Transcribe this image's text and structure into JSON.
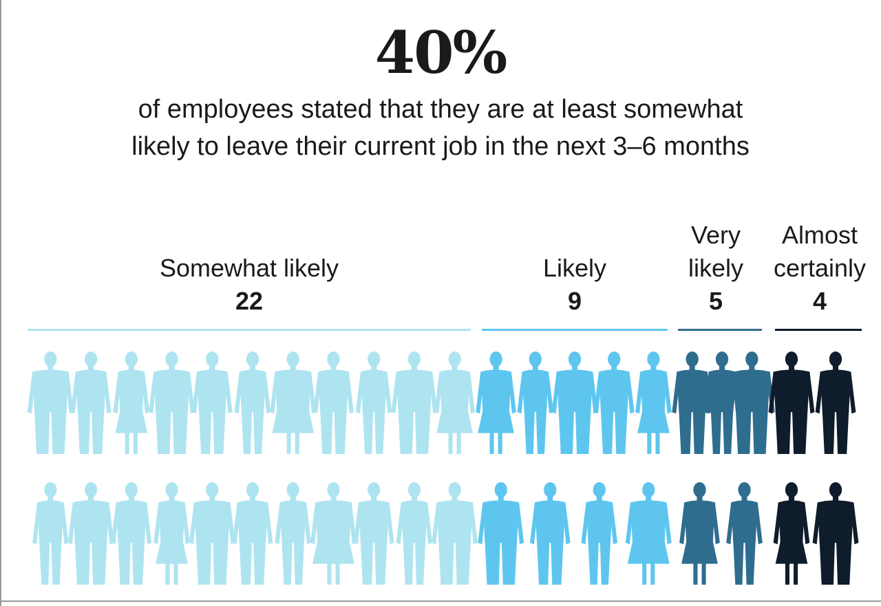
{
  "headline": "40%",
  "subtitle_line1": "of employees stated that they are at least somewhat",
  "subtitle_line2": "likely to leave their current job in the next 3–6 months",
  "chart_data": {
    "type": "pictograph",
    "total_icons": 40,
    "categories": [
      "Somewhat likely",
      "Likely",
      "Very likely",
      "Almost certainly"
    ],
    "values": [
      22,
      9,
      5,
      4
    ],
    "colors": [
      "#aee4f0",
      "#5ec6ee",
      "#2f6d8f",
      "#0e1c2b"
    ],
    "labels": [
      {
        "line1": "Somewhat likely",
        "count": "22"
      },
      {
        "line1": "Likely",
        "count": "9"
      },
      {
        "line1": "Very",
        "line2": "likely",
        "count": "5"
      },
      {
        "line1": "Almost",
        "line2": "certainly",
        "count": "4"
      }
    ]
  }
}
